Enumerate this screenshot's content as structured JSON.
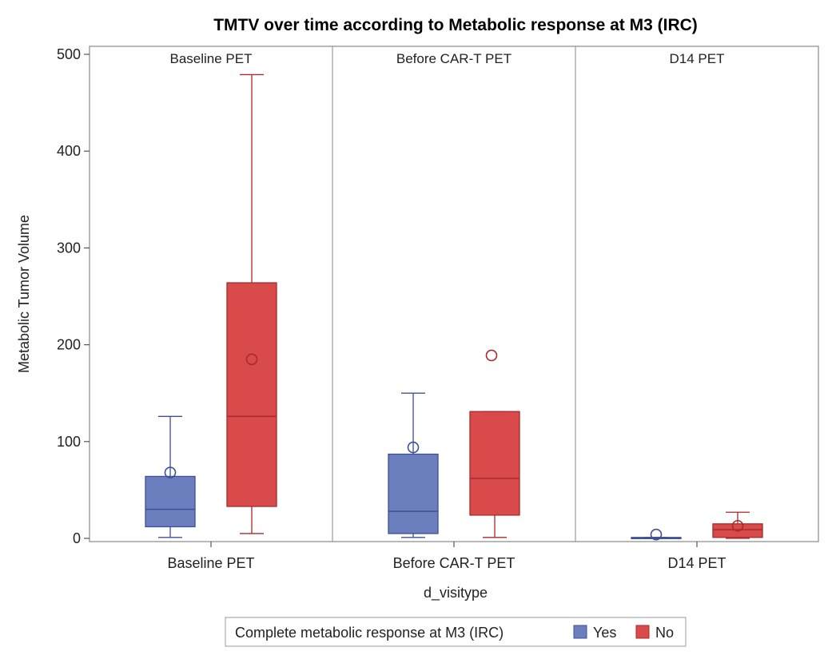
{
  "chart_data": {
    "type": "box",
    "title": "TMTV over time according to Metabolic response at M3 (IRC)",
    "xlabel": "d_visitype",
    "ylabel": "Metabolic Tumor Volume",
    "ylim": [
      0,
      500
    ],
    "yticks": [
      0,
      100,
      200,
      300,
      400,
      500
    ],
    "categories": [
      "Baseline PET",
      "Before CAR-T PET",
      "D14 PET"
    ],
    "panel_labels": [
      "Baseline PET",
      "Before CAR-T PET",
      "D14 PET"
    ],
    "series": [
      {
        "name": "Yes",
        "color": "#6b7fbf",
        "stroke": "#3f4f95",
        "boxes": [
          {
            "category": "Baseline PET",
            "min": 1,
            "q1": 12,
            "median": 30,
            "q3": 64,
            "max": 126,
            "mean": 68,
            "outliers": []
          },
          {
            "category": "Before CAR-T PET",
            "min": 1,
            "q1": 5,
            "median": 28,
            "q3": 87,
            "max": 150,
            "mean": 94,
            "outliers": []
          },
          {
            "category": "D14 PET",
            "min": 0,
            "q1": 0,
            "median": 0,
            "q3": 1,
            "max": 1,
            "mean": 4,
            "outliers": []
          }
        ]
      },
      {
        "name": "No",
        "color": "#d94a4a",
        "stroke": "#a82a2a",
        "boxes": [
          {
            "category": "Baseline PET",
            "min": 5,
            "q1": 33,
            "median": 126,
            "q3": 264,
            "max": 479,
            "mean": 185,
            "outliers": []
          },
          {
            "category": "Before CAR-T PET",
            "min": 1,
            "q1": 24,
            "median": 62,
            "q3": 131,
            "max": 131,
            "mean": null,
            "outliers": [
              189
            ]
          },
          {
            "category": "D14 PET",
            "min": 0,
            "q1": 1,
            "median": 9,
            "q3": 15,
            "max": 27,
            "mean": 13,
            "outliers": []
          }
        ]
      }
    ],
    "legend": {
      "title": "Complete metabolic response at M3 (IRC)",
      "entries": [
        "Yes",
        "No"
      ],
      "position": "bottom"
    }
  }
}
